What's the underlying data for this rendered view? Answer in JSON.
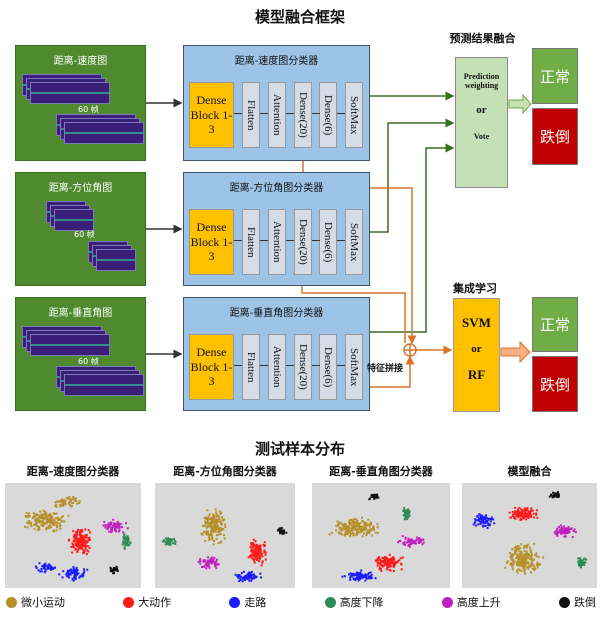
{
  "framework_title": "模型融合框架",
  "inputs": [
    {
      "label": "距离-速度图",
      "frames": "60 帧"
    },
    {
      "label": "距离-方位角图",
      "frames": "60 帧"
    },
    {
      "label": "距离-垂直角图",
      "frames": "60 帧"
    }
  ],
  "classifiers": [
    {
      "label": "距离-速度图分类器"
    },
    {
      "label": "距离-方位角图分类器"
    },
    {
      "label": "距离-垂直角图分类器"
    }
  ],
  "layers": {
    "dense_block": "Dense Block 1-3",
    "flatten": "Flatten",
    "attention": "Attention",
    "dense20": "Dense(20)",
    "dense6": "Dense(6)",
    "softmax": "SoftMax"
  },
  "fusion": {
    "title": "预测结果融合",
    "line1": "Prediction weighting",
    "or": "or",
    "line3": "Vote"
  },
  "ensemble": {
    "title": "集成学习",
    "line1": "SVM",
    "or": "or",
    "line3": "RF",
    "concat_label": "特征拼接"
  },
  "outputs": {
    "normal": "正常",
    "fall": "跌倒"
  },
  "colors": {
    "input_bg": "#4f8a2f",
    "classifier_bg": "#9dc3e6",
    "dense_block": "#ffc000",
    "fusion_bg": "#c5e0b4",
    "normal": "#70ad47",
    "fall": "#c00000",
    "feature_line": "#d9732c",
    "prediction_line": "#3c6e22"
  },
  "distribution": {
    "title": "测试样本分布",
    "panels": [
      "距离-速度图分类器",
      "距离-方位角图分类器",
      "距离-垂直角图分类器",
      "模型融合"
    ],
    "legend": [
      {
        "label": "微小运动",
        "color": "#b8902a"
      },
      {
        "label": "大动作",
        "color": "#ff1a1a"
      },
      {
        "label": "走路",
        "color": "#1a1aff"
      },
      {
        "label": "高度下降",
        "color": "#2e8b57"
      },
      {
        "label": "高度上升",
        "color": "#c020c0"
      },
      {
        "label": "跌倒",
        "color": "#111111"
      }
    ]
  }
}
